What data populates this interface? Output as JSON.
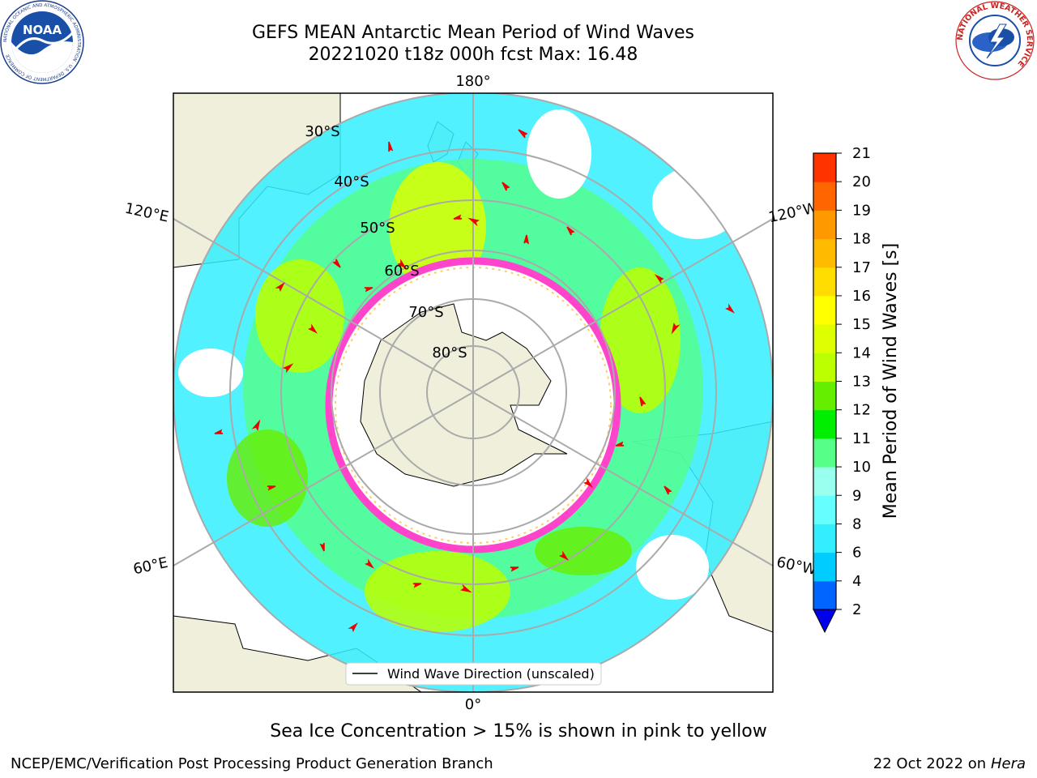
{
  "header": {
    "title_line1": "GEFS MEAN Antarctic Mean Period of Wind Waves",
    "title_line2": "20221020 t18z 000h fcst   Max: 16.48"
  },
  "logos": {
    "noaa_text": "NOAA",
    "noaa_ring_text": "NATIONAL OCEANIC AND ATMOSPHERIC ADMINISTRATION · U.S. DEPARTMENT OF COMMERCE",
    "nws_ring_text": "NATIONAL WEATHER SERVICE"
  },
  "map": {
    "projection": "south-polar-stereographic",
    "longitude_labels": {
      "top": "180°",
      "bottom": "0°",
      "upper_left": "120°E",
      "upper_right": "120°W",
      "lower_left": "60°E",
      "lower_right": "60°W"
    },
    "latitude_labels": [
      "30°S",
      "40°S",
      "50°S",
      "60°S",
      "70°S",
      "80°S"
    ],
    "legend_label": "Wind Wave Direction (unscaled)"
  },
  "colorbar": {
    "label": "Mean Period of Wind Waves [s]",
    "ticks": [
      "2",
      "4",
      "6",
      "8",
      "9",
      "10",
      "11",
      "12",
      "13",
      "14",
      "15",
      "16",
      "17",
      "18",
      "19",
      "20",
      "21"
    ],
    "colors": [
      "#0066ff",
      "#00ccff",
      "#33eeff",
      "#66ffff",
      "#99ffee",
      "#55ff88",
      "#00ee00",
      "#66ee00",
      "#bbff00",
      "#ddff00",
      "#ffff00",
      "#ffdd00",
      "#ffbb00",
      "#ff9900",
      "#ff6600",
      "#ff3300"
    ],
    "extend_color": "#0000ee"
  },
  "notes": {
    "sea_ice": "Sea Ice Concentration > 15% is shown in pink to yellow"
  },
  "footer": {
    "left": "NCEP/EMC/Verification Post Processing Product Generation Branch",
    "right_date": "22 Oct 2022 on",
    "right_machine": "Hera"
  }
}
